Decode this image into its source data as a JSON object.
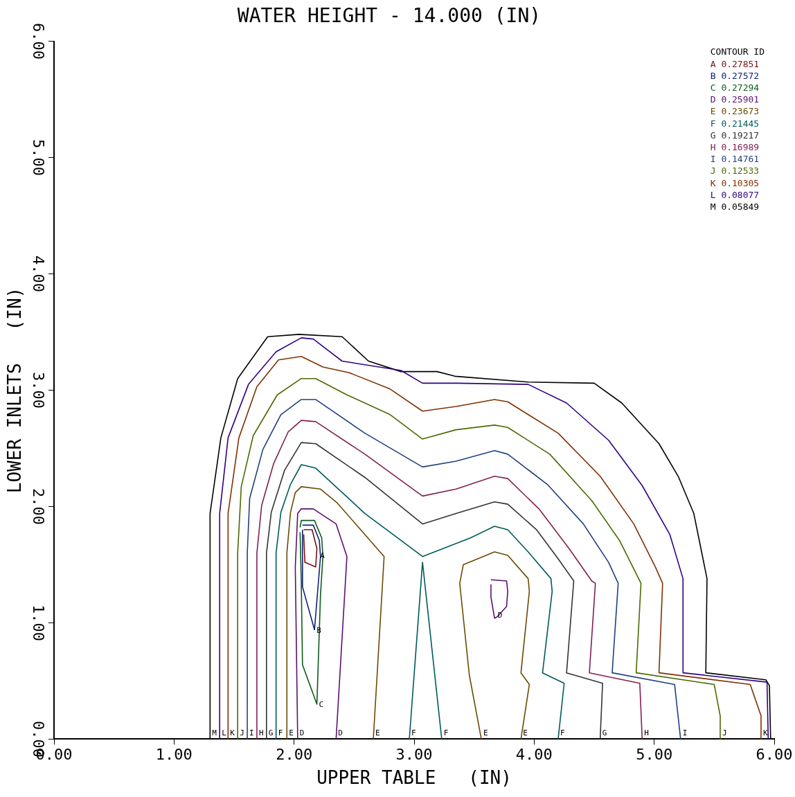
{
  "chart_data": {
    "type": "line",
    "title": "WATER HEIGHT - 14.000 (IN)",
    "xlabel": "UPPER TABLE   (IN)",
    "ylabel": "LOWER INLETS   (IN)",
    "legend_title": "CONTOUR ID",
    "legend": "top right",
    "marker": "none",
    "grid": false,
    "xlim": [
      0,
      6
    ],
    "ylim": [
      0,
      6
    ],
    "xticks": [
      {
        "value": 0,
        "label": "0.00"
      },
      {
        "value": 1,
        "label": "1.00"
      },
      {
        "value": 2,
        "label": "2.00"
      },
      {
        "value": 3,
        "label": "3.00"
      },
      {
        "value": 4,
        "label": "4.00"
      },
      {
        "value": 5,
        "label": "5.00"
      },
      {
        "value": 6,
        "label": "6.00"
      }
    ],
    "yticks": [
      {
        "value": 0,
        "label": "0.00"
      },
      {
        "value": 1,
        "label": "1.00"
      },
      {
        "value": 2,
        "label": "2.00"
      },
      {
        "value": 3,
        "label": "3.00"
      },
      {
        "value": 4,
        "label": "4.00"
      },
      {
        "value": 5,
        "label": "5.00"
      },
      {
        "value": 6,
        "label": "6.00"
      }
    ],
    "series": [
      {
        "name": "A 0.27851",
        "color": "#7a1010",
        "x": [
          2.08,
          2.15,
          2.19,
          2.18,
          2.09,
          2.08
        ],
        "values": [
          1.8,
          1.8,
          1.64,
          1.48,
          1.52,
          1.76
        ]
      },
      {
        "name": "B 0.27572",
        "color": "#10207a",
        "x": [
          2.07,
          2.16,
          2.21,
          2.22,
          2.17,
          2.07,
          2.07
        ],
        "values": [
          1.84,
          1.84,
          1.71,
          1.57,
          0.94,
          1.31,
          1.8
        ]
      },
      {
        "name": "C 0.27294",
        "color": "#0d5a1a",
        "x": [
          2.05,
          2.06,
          2.17,
          2.23,
          2.24,
          2.22,
          2.19,
          2.07,
          2.06,
          2.05
        ],
        "values": [
          1.82,
          1.88,
          1.88,
          1.73,
          1.57,
          1.24,
          0.3,
          0.64,
          1.34,
          1.78
        ]
      },
      {
        "name": "D 0.25901",
        "color": "#5a1070",
        "x": [
          2.03,
          2.01,
          2.03,
          2.06,
          2.16,
          2.35,
          2.44,
          2.35
        ],
        "values": [
          0,
          1.48,
          1.94,
          1.98,
          1.98,
          1.85,
          1.57,
          0
        ]
      },
      {
        "color": "#5a1070",
        "x": [
          3.64,
          3.77,
          3.78,
          3.77,
          3.69,
          3.67,
          3.64,
          3.64
        ],
        "values": [
          1.37,
          1.36,
          1.27,
          1.14,
          1.05,
          1.04,
          1.22,
          1.33
        ]
      },
      {
        "name": "E 0.23673",
        "color": "#6a4a00",
        "x": [
          1.94,
          1.94,
          1.97,
          2.01,
          2.06,
          2.22,
          2.36,
          2.75,
          2.66
        ],
        "values": [
          0,
          1.6,
          1.95,
          2.12,
          2.17,
          2.15,
          2.03,
          1.57,
          0
        ]
      },
      {
        "color": "#6a4a00",
        "x": [
          3.56,
          3.46,
          3.38,
          3.41,
          3.67,
          3.78,
          3.95,
          3.96,
          3.89,
          3.96,
          3.89
        ],
        "values": [
          0,
          0.55,
          1.34,
          1.5,
          1.61,
          1.58,
          1.38,
          1.27,
          0.57,
          0.47,
          0
        ]
      },
      {
        "name": "F 0.21445",
        "color": "#005a5a",
        "x": [
          1.85,
          1.85,
          1.89,
          1.97,
          2.06,
          2.18,
          2.59,
          3.07,
          3.47,
          3.67,
          3.78,
          3.95,
          4.14,
          4.15,
          4.07,
          4.25,
          4.2
        ],
        "values": [
          0,
          1.6,
          1.95,
          2.19,
          2.36,
          2.33,
          1.94,
          1.57,
          1.73,
          1.83,
          1.8,
          1.61,
          1.38,
          1.27,
          0.57,
          0.48,
          0
        ]
      },
      {
        "color": "#005a5a",
        "x": [
          2.96,
          3.07,
          3.23
        ],
        "values": [
          0,
          1.52,
          0
        ]
      },
      {
        "name": "G 0.19217",
        "color": "#333333",
        "x": [
          1.77,
          1.77,
          1.81,
          1.92,
          2.06,
          2.18,
          2.59,
          3.07,
          3.35,
          3.67,
          3.78,
          4.02,
          4.2,
          4.33,
          4.27,
          4.57,
          4.55
        ],
        "values": [
          0,
          1.6,
          1.95,
          2.31,
          2.55,
          2.54,
          2.25,
          1.85,
          1.94,
          2.04,
          2.02,
          1.8,
          1.55,
          1.36,
          0.57,
          0.48,
          0
        ]
      },
      {
        "name": "H 0.16989",
        "color": "#802050",
        "x": [
          1.69,
          1.69,
          1.73,
          1.83,
          1.95,
          2.06,
          2.18,
          2.59,
          3.07,
          3.35,
          3.67,
          3.78,
          4.04,
          4.29,
          4.48,
          4.51,
          4.46,
          4.88,
          4.9
        ],
        "values": [
          0,
          1.6,
          2.01,
          2.37,
          2.64,
          2.74,
          2.73,
          2.45,
          2.09,
          2.15,
          2.26,
          2.24,
          1.98,
          1.64,
          1.36,
          1.34,
          0.57,
          0.48,
          0
        ]
      },
      {
        "name": "I 0.14761",
        "color": "#204080",
        "x": [
          1.61,
          1.61,
          1.63,
          1.74,
          1.89,
          2.06,
          2.18,
          2.59,
          3.07,
          3.35,
          3.67,
          3.78,
          4.11,
          4.41,
          4.62,
          4.7,
          4.65,
          5.17,
          5.22
        ],
        "values": [
          0,
          1.6,
          2.07,
          2.49,
          2.79,
          2.92,
          2.92,
          2.63,
          2.34,
          2.39,
          2.48,
          2.45,
          2.19,
          1.85,
          1.52,
          1.34,
          0.57,
          0.47,
          0
        ]
      },
      {
        "name": "J 0.12533",
        "color": "#4a6a00",
        "x": [
          1.53,
          1.53,
          1.56,
          1.66,
          1.86,
          2.06,
          2.18,
          2.44,
          2.8,
          3.07,
          3.35,
          3.67,
          3.78,
          4.13,
          4.48,
          4.71,
          4.89,
          4.85,
          5.5,
          5.55,
          5.55
        ],
        "values": [
          0,
          1.6,
          2.17,
          2.61,
          2.96,
          3.1,
          3.1,
          2.96,
          2.79,
          2.58,
          2.66,
          2.7,
          2.68,
          2.45,
          2.05,
          1.71,
          1.34,
          0.57,
          0.47,
          0.2,
          0
        ]
      },
      {
        "name": "K 0.10305",
        "color": "#803000",
        "x": [
          1.45,
          1.45,
          1.54,
          1.69,
          1.87,
          2.06,
          2.24,
          2.46,
          2.8,
          3.07,
          3.35,
          3.67,
          3.78,
          4.2,
          4.55,
          4.83,
          5.01,
          5.07,
          5.04,
          5.8,
          5.89,
          5.89
        ],
        "values": [
          0,
          1.94,
          2.59,
          3.03,
          3.26,
          3.29,
          3.2,
          3.15,
          3.01,
          2.82,
          2.86,
          2.92,
          2.9,
          2.63,
          2.26,
          1.85,
          1.48,
          1.34,
          0.57,
          0.47,
          0.2,
          0
        ]
      },
      {
        "name": "L 0.08077",
        "color": "#300080",
        "x": [
          1.38,
          1.38,
          1.45,
          1.62,
          1.85,
          2.06,
          2.16,
          2.4,
          2.89,
          3.07,
          3.35,
          3.95,
          4.27,
          4.62,
          4.9,
          5.13,
          5.24,
          5.24,
          5.94,
          5.95
        ],
        "values": [
          0,
          1.94,
          2.59,
          3.05,
          3.33,
          3.45,
          3.44,
          3.25,
          3.17,
          3.06,
          3.06,
          3.05,
          2.89,
          2.57,
          2.18,
          1.76,
          1.38,
          0.57,
          0.49,
          0
        ]
      },
      {
        "name": "M 0.05849",
        "color": "#000000",
        "x": [
          1.3,
          1.3,
          1.39,
          1.53,
          1.78,
          2.04,
          2.4,
          2.62,
          2.89,
          3.19,
          3.34,
          3.95,
          4.5,
          4.73,
          5.04,
          5.2,
          5.33,
          5.44,
          5.43,
          5.93,
          5.96,
          5.97
        ],
        "values": [
          0,
          1.94,
          2.59,
          3.1,
          3.46,
          3.48,
          3.46,
          3.25,
          3.16,
          3.16,
          3.12,
          3.07,
          3.06,
          2.89,
          2.54,
          2.26,
          1.94,
          1.38,
          0.57,
          0.51,
          0.46,
          0
        ]
      }
    ],
    "annotations": [
      {
        "text": "A",
        "x": 2.2,
        "y": 1.58
      },
      {
        "text": "B",
        "x": 2.17,
        "y": 0.94
      },
      {
        "text": "C",
        "x": 2.19,
        "y": 0.3
      },
      {
        "text": "D",
        "x": 3.68,
        "y": 1.07
      },
      {
        "text": "M",
        "x": 1.3,
        "y": 0
      },
      {
        "text": "L",
        "x": 1.38,
        "y": 0
      },
      {
        "text": "K",
        "x": 1.45,
        "y": 0
      },
      {
        "text": "J",
        "x": 1.53,
        "y": 0
      },
      {
        "text": "I",
        "x": 1.61,
        "y": 0
      },
      {
        "text": "H",
        "x": 1.69,
        "y": 0
      },
      {
        "text": "G",
        "x": 1.77,
        "y": 0
      },
      {
        "text": "F",
        "x": 1.85,
        "y": 0
      },
      {
        "text": "E",
        "x": 1.94,
        "y": 0
      },
      {
        "text": "D",
        "x": 2.03,
        "y": 0
      },
      {
        "text": "D",
        "x": 2.35,
        "y": 0
      },
      {
        "text": "E",
        "x": 2.66,
        "y": 0
      },
      {
        "text": "F",
        "x": 2.96,
        "y": 0
      },
      {
        "text": "F",
        "x": 3.23,
        "y": 0
      },
      {
        "text": "E",
        "x": 3.56,
        "y": 0
      },
      {
        "text": "E",
        "x": 3.89,
        "y": 0
      },
      {
        "text": "F",
        "x": 4.2,
        "y": 0
      },
      {
        "text": "G",
        "x": 4.55,
        "y": 0
      },
      {
        "text": "H",
        "x": 4.9,
        "y": 0
      },
      {
        "text": "I",
        "x": 5.22,
        "y": 0
      },
      {
        "text": "J",
        "x": 5.55,
        "y": 0
      },
      {
        "text": "K",
        "x": 5.89,
        "y": 0
      }
    ]
  }
}
